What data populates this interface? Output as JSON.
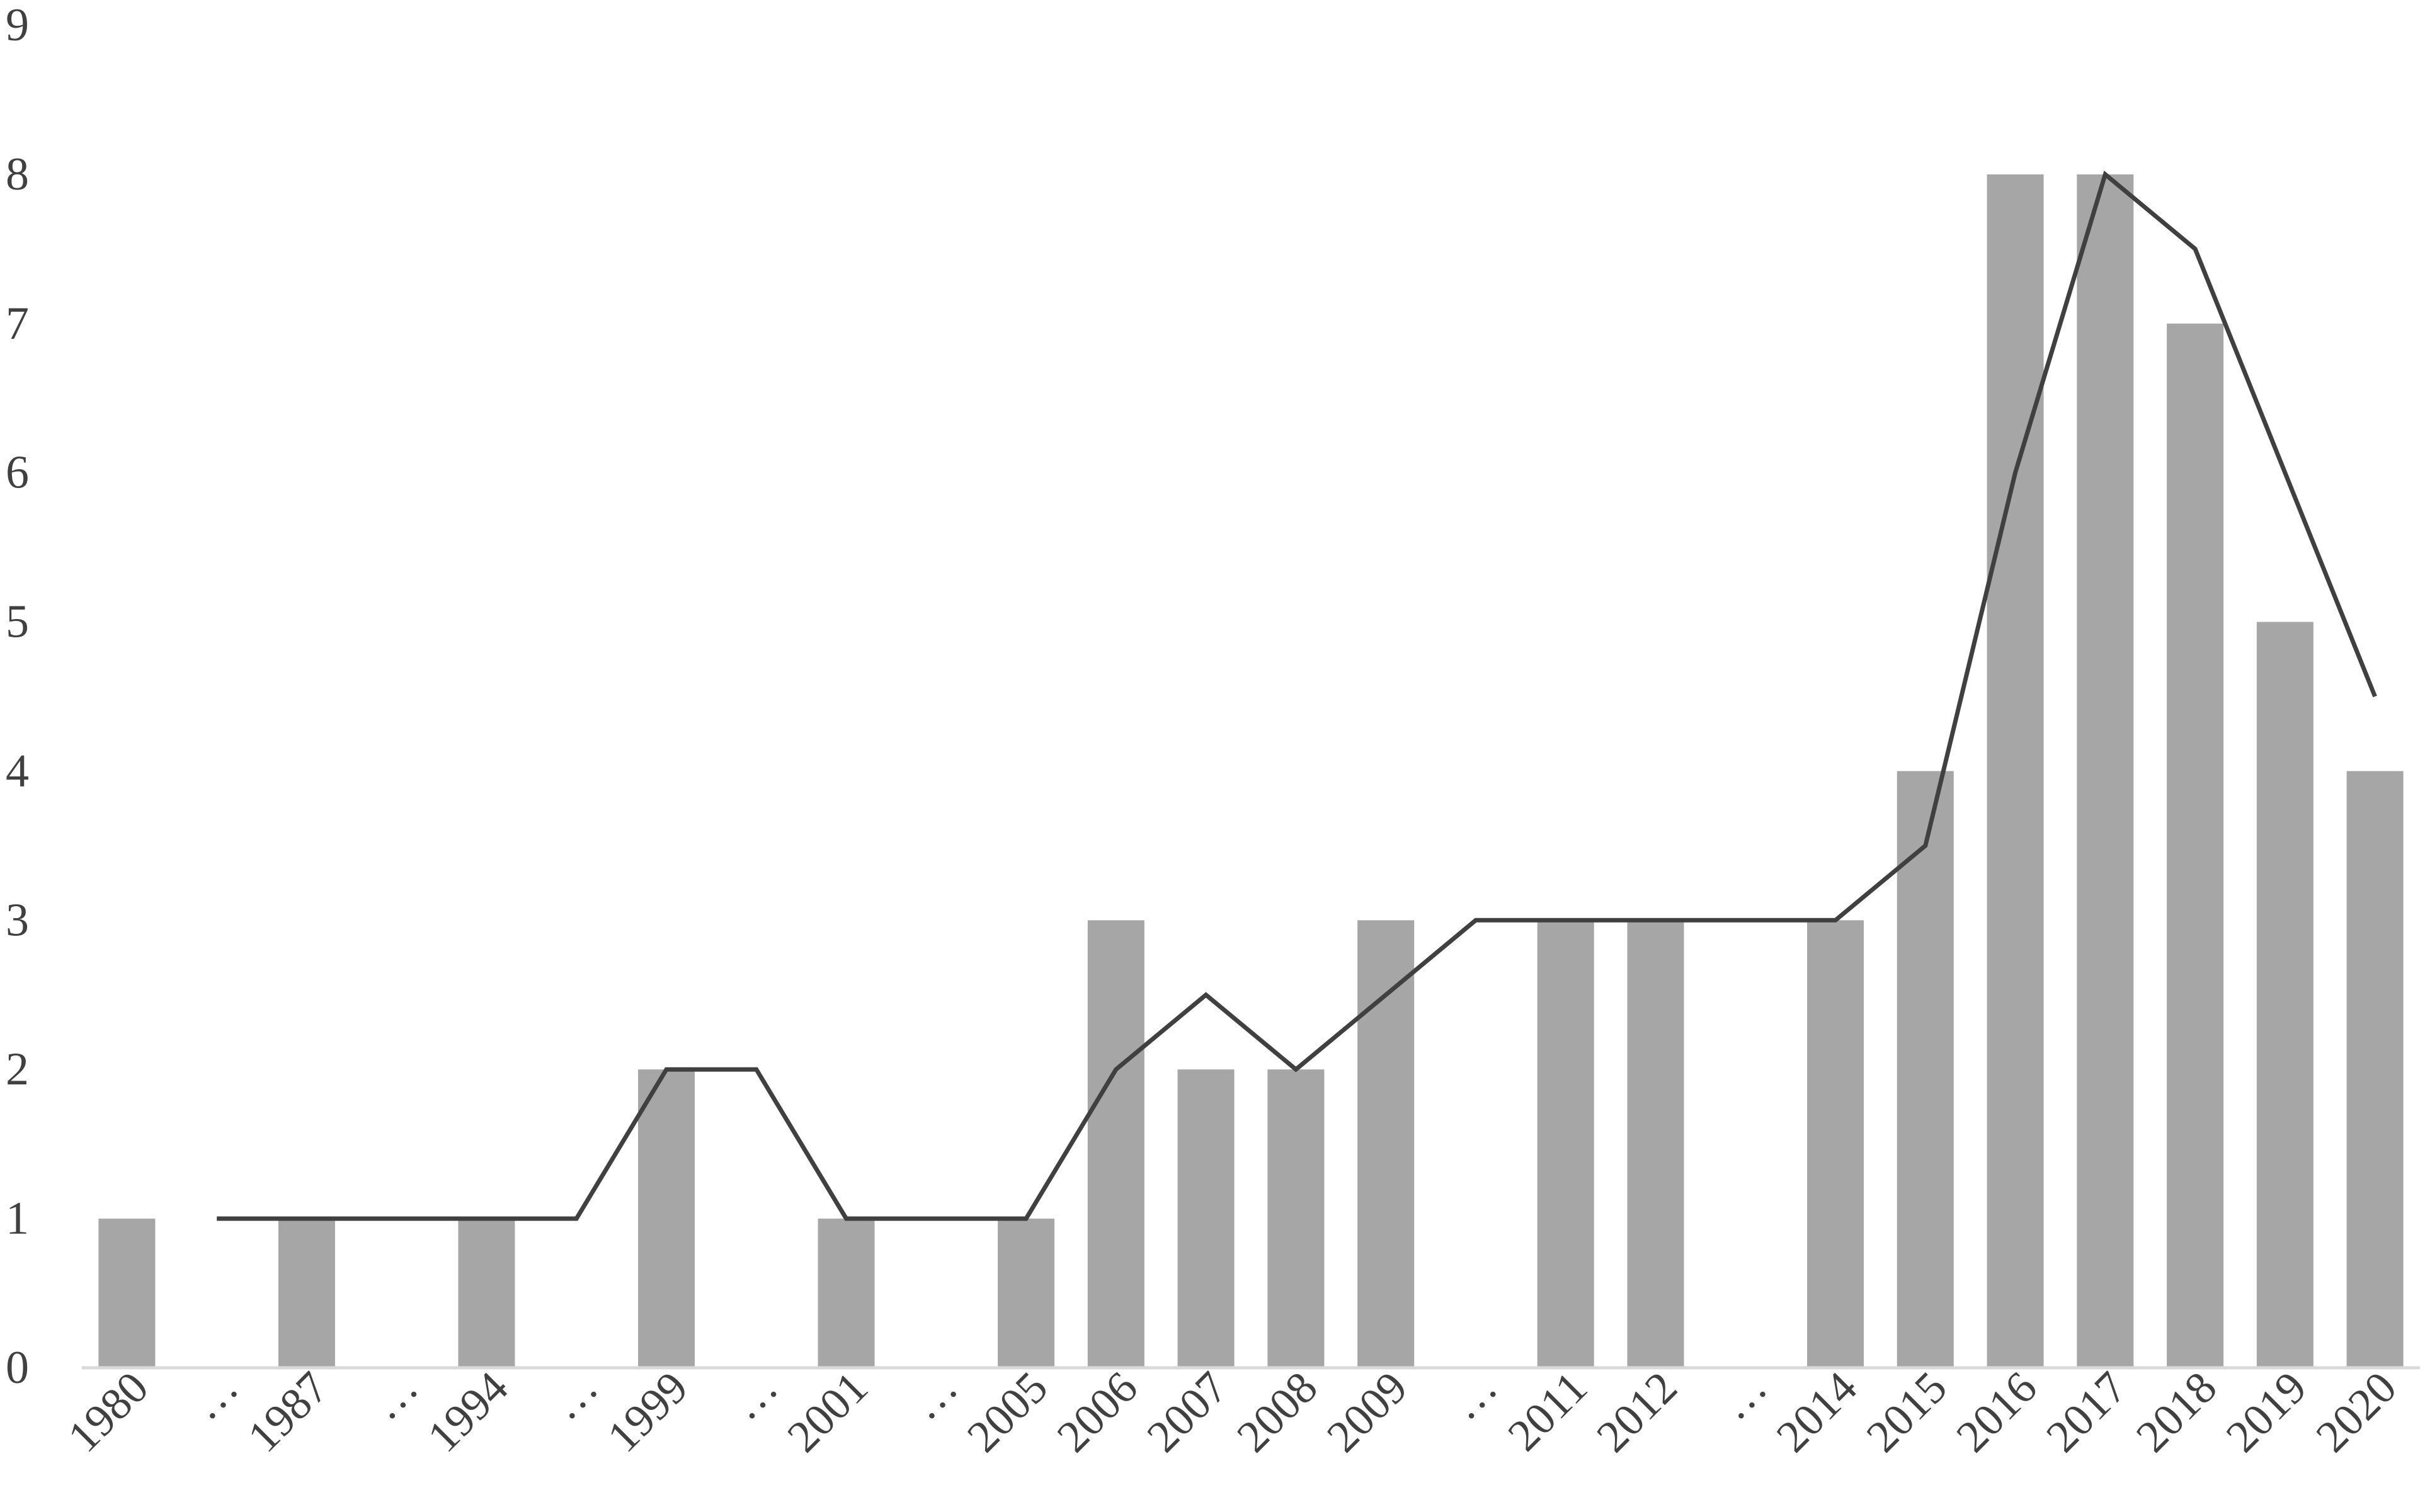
{
  "chart_data": {
    "type": "bar",
    "categories": [
      "1980",
      "…",
      "1987",
      "…",
      "1994",
      "…",
      "1999",
      "…",
      "2001",
      "…",
      "2005",
      "2006",
      "2007",
      "2008",
      "2009",
      "…",
      "2011",
      "2012",
      "…",
      "2014",
      "2015",
      "2016",
      "2017",
      "2018",
      "2019",
      "2020"
    ],
    "series": [
      {
        "type": "bar",
        "values": [
          1,
          0,
          1,
          0,
          1,
          0,
          2,
          0,
          1,
          0,
          1,
          3,
          2,
          2,
          3,
          0,
          3,
          3,
          0,
          3,
          4,
          8,
          8,
          7,
          5,
          4
        ]
      },
      {
        "type": "line",
        "values": [
          null,
          1,
          1,
          1,
          1,
          1,
          2,
          2,
          1,
          1,
          1,
          2,
          2.5,
          2,
          2.5,
          3,
          3,
          3,
          3,
          3,
          3.5,
          6,
          8,
          7.5,
          6,
          4.5
        ]
      }
    ],
    "ylim": [
      0,
      9
    ],
    "yticks": [
      "0",
      "1",
      "2",
      "3",
      "4",
      "5",
      "6",
      "7",
      "8",
      "9"
    ],
    "grid": false,
    "legend": "none",
    "colors": {
      "bar": "#a6a6a6",
      "line": "#404040",
      "axis": "#d9d9d9",
      "text": "#404040"
    }
  }
}
